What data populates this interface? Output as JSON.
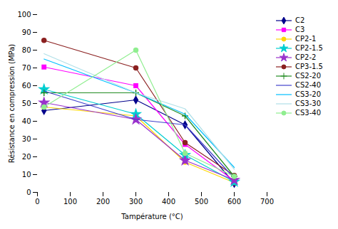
{
  "chart_data": {
    "type": "line",
    "xlabel": "Tampérature (°C)",
    "ylabel": "Résistance en compression (MPa)",
    "x": [
      20,
      300,
      450,
      600
    ],
    "xlim": [
      0,
      700
    ],
    "ylim": [
      0,
      100
    ],
    "xticks": [
      0,
      100,
      200,
      300,
      400,
      500,
      600,
      700
    ],
    "yticks": [
      0,
      10,
      20,
      30,
      40,
      50,
      60,
      70,
      80,
      90,
      100
    ],
    "grid": false,
    "legend": "upper right",
    "series": [
      {
        "name": "C2",
        "color": "#00008B",
        "marker": "diamond",
        "values": [
          46,
          52,
          38,
          5
        ]
      },
      {
        "name": "C3",
        "color": "#FF00FF",
        "marker": "square",
        "values": [
          70.5,
          60,
          27,
          6.5
        ]
      },
      {
        "name": "CP2-1",
        "color": "#FFD700",
        "marker": "circle",
        "values": [
          48,
          43,
          17,
          5.5
        ]
      },
      {
        "name": "CP2-1.5",
        "color": "#00CED1",
        "marker": "star",
        "values": [
          58,
          44,
          21,
          6
        ]
      },
      {
        "name": "CP2-2",
        "color": "#9932CC",
        "marker": "star",
        "values": [
          50.5,
          41,
          18,
          7
        ]
      },
      {
        "name": "CP3-1.5",
        "color": "#8B2020",
        "marker": "circle",
        "values": [
          85.5,
          70,
          28,
          9.5
        ]
      },
      {
        "name": "CS2-20",
        "color": "#228B22",
        "marker": "plus",
        "values": [
          56,
          56,
          43,
          9
        ]
      },
      {
        "name": "CS2-40",
        "color": "#4040CC",
        "marker": "none",
        "values": [
          57,
          41,
          38,
          8
        ]
      },
      {
        "name": "CS3-20",
        "color": "#00BFFF",
        "marker": "none",
        "values": [
          75,
          56,
          44,
          14
        ]
      },
      {
        "name": "CS3-30",
        "color": "#B0E0E8",
        "marker": "none",
        "values": [
          78,
          56,
          47,
          13
        ]
      },
      {
        "name": "CS3-40",
        "color": "#90EE90",
        "marker": "circle",
        "values": [
          48,
          80,
          22,
          9
        ]
      }
    ]
  }
}
